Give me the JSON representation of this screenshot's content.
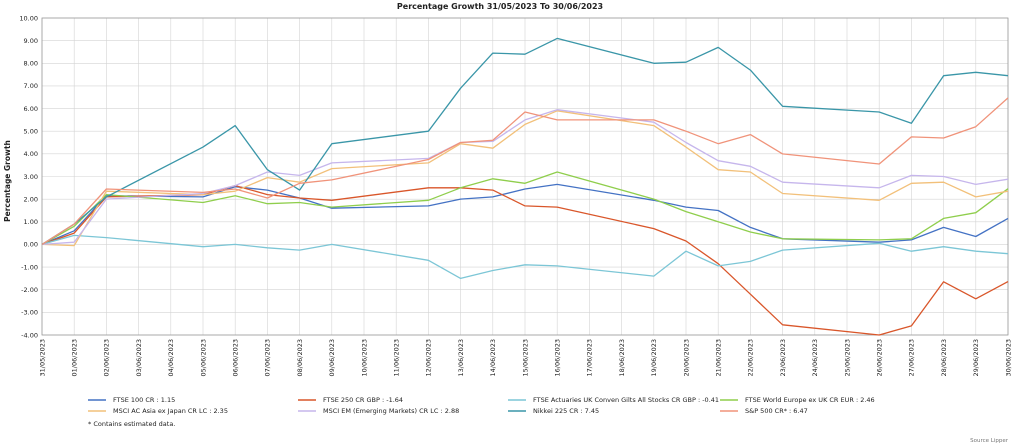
{
  "chart_data": {
    "type": "line",
    "title": "Percentage Growth 31/05/2023 To 30/06/2023",
    "ylabel": "Percentage Growth",
    "ylim": [
      -4,
      10
    ],
    "yticks": [
      "10.00",
      "9.00",
      "8.00",
      "7.00",
      "6.00",
      "5.00",
      "4.00",
      "3.00",
      "2.00",
      "1.00",
      "0.00",
      "-1.00",
      "-2.00",
      "-3.00",
      "-4.00"
    ],
    "grid": true,
    "x": [
      "31/05/2023",
      "01/06/2023",
      "02/06/2023",
      "03/06/2023",
      "04/06/2023",
      "05/06/2023",
      "06/06/2023",
      "07/06/2023",
      "08/06/2023",
      "09/06/2023",
      "10/06/2023",
      "11/06/2023",
      "12/06/2023",
      "13/06/2023",
      "14/06/2023",
      "15/06/2023",
      "16/06/2023",
      "17/06/2023",
      "18/06/2023",
      "19/06/2023",
      "20/06/2023",
      "21/06/2023",
      "22/06/2023",
      "23/06/2023",
      "24/06/2023",
      "25/06/2023",
      "26/06/2023",
      "27/06/2023",
      "28/06/2023",
      "29/06/2023",
      "30/06/2023"
    ],
    "series": [
      {
        "name": "FTSE 100 CR : 1.15",
        "color": "#4472c4",
        "values": [
          0,
          0.6,
          2.15,
          null,
          null,
          2.1,
          2.55,
          2.4,
          2.05,
          1.6,
          null,
          null,
          1.7,
          2.0,
          2.1,
          2.45,
          2.65,
          null,
          null,
          1.95,
          1.65,
          1.5,
          0.75,
          0.25,
          null,
          null,
          0.1,
          0.2,
          0.75,
          0.35,
          1.15
        ]
      },
      {
        "name": "FTSE 250 CR GBP : -1.64",
        "color": "#d9562a",
        "values": [
          0,
          0.5,
          2.1,
          null,
          null,
          2.2,
          2.6,
          2.2,
          2.05,
          1.95,
          null,
          null,
          2.5,
          2.5,
          2.4,
          1.7,
          1.65,
          null,
          null,
          0.7,
          0.15,
          -0.85,
          -2.2,
          -3.55,
          null,
          null,
          -4.0,
          -3.6,
          -1.65,
          -2.4,
          -1.64
        ]
      },
      {
        "name": "FTSE Actuaries UK Conven Gilts All Stocks CR GBP : -0.41",
        "color": "#7cc6d6",
        "values": [
          0,
          0.4,
          0.3,
          null,
          null,
          -0.1,
          0.0,
          -0.15,
          -0.25,
          0.0,
          null,
          null,
          -0.7,
          -1.5,
          -1.15,
          -0.9,
          -0.95,
          null,
          null,
          -1.4,
          -0.3,
          -0.95,
          -0.75,
          -0.25,
          null,
          null,
          0.05,
          -0.3,
          -0.1,
          -0.3,
          -0.41
        ]
      },
      {
        "name": "FTSE World Europe ex UK CR EUR : 2.46",
        "color": "#8fce4c",
        "values": [
          0,
          0.8,
          2.2,
          null,
          null,
          1.85,
          2.15,
          1.8,
          1.85,
          1.65,
          null,
          null,
          1.95,
          2.5,
          2.9,
          2.7,
          3.2,
          null,
          null,
          2.0,
          1.45,
          1.0,
          0.55,
          0.25,
          null,
          null,
          0.2,
          0.25,
          1.15,
          1.4,
          2.46
        ]
      },
      {
        "name": "MSCI AC Asia ex Japan CR LC : 2.35",
        "color": "#f2c07a",
        "values": [
          0,
          -0.05,
          2.35,
          null,
          null,
          2.2,
          2.35,
          2.95,
          2.75,
          3.35,
          null,
          null,
          3.6,
          4.45,
          4.25,
          5.3,
          5.9,
          null,
          null,
          5.25,
          4.3,
          3.3,
          3.2,
          2.25,
          null,
          null,
          1.95,
          2.7,
          2.75,
          2.1,
          2.35
        ]
      },
      {
        "name": "MSCI EM (Emerging Markets) CR LC : 2.88",
        "color": "#c6b6ec",
        "values": [
          0,
          0.1,
          2.0,
          null,
          null,
          2.25,
          2.6,
          3.2,
          3.05,
          3.6,
          null,
          null,
          3.8,
          4.5,
          4.55,
          5.5,
          5.95,
          null,
          null,
          5.4,
          4.5,
          3.7,
          3.45,
          2.75,
          null,
          null,
          2.5,
          3.05,
          3.0,
          2.65,
          2.88
        ]
      },
      {
        "name": "Nikkei 225 CR : 7.45",
        "color": "#3a96a8",
        "values": [
          0,
          0.9,
          2.1,
          null,
          null,
          4.3,
          5.25,
          3.3,
          2.4,
          4.45,
          null,
          null,
          5.0,
          6.9,
          8.45,
          8.4,
          9.1,
          null,
          null,
          8.0,
          8.05,
          8.7,
          7.7,
          6.1,
          null,
          null,
          5.85,
          5.35,
          7.45,
          7.6,
          7.45
        ]
      },
      {
        "name": "S&P 500 CR* : 6.47",
        "color": "#f0937a",
        "values": [
          0,
          0.9,
          2.45,
          null,
          null,
          2.3,
          2.45,
          2.05,
          2.7,
          2.85,
          null,
          null,
          3.75,
          4.5,
          4.6,
          5.85,
          5.5,
          null,
          null,
          5.5,
          5.0,
          4.45,
          4.85,
          4.0,
          null,
          null,
          3.55,
          4.75,
          4.7,
          5.2,
          6.47
        ]
      }
    ],
    "note": "*  Contains estimated data.",
    "source": "Source Lipper"
  }
}
